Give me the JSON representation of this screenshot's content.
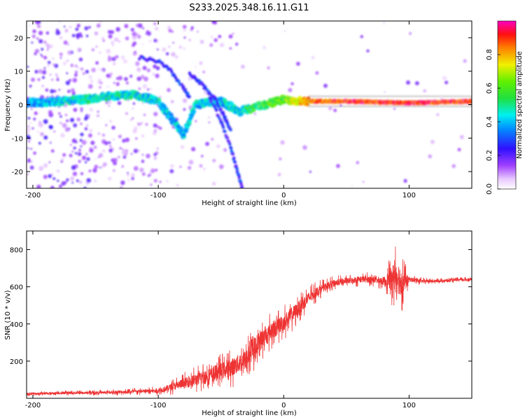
{
  "title": "S233.2025.348.16.11.G11",
  "chart_data": [
    {
      "type": "heatmap",
      "name": "spectrogram",
      "xlabel": "Height of straight line (km)",
      "ylabel": "Frequency (Hz)",
      "xlim": [
        -205,
        150
      ],
      "ylim": [
        -25,
        25
      ],
      "xticks": [
        -200,
        -100,
        0,
        100
      ],
      "yticks": [
        -20,
        -10,
        0,
        10,
        20
      ],
      "colorbar": {
        "label": "Normalized spectral amplitude",
        "range": [
          0,
          1
        ],
        "ticks": [
          0.0,
          0.2,
          0.4,
          0.6,
          0.8
        ]
      },
      "ridge": {
        "description_points": [
          {
            "x": -205,
            "f": 0.5,
            "amp": 0.35
          },
          {
            "x": -180,
            "f": 1.0,
            "amp": 0.4
          },
          {
            "x": -160,
            "f": 1.5,
            "amp": 0.45
          },
          {
            "x": -140,
            "f": 2.5,
            "amp": 0.45
          },
          {
            "x": -120,
            "f": 3.0,
            "amp": 0.45
          },
          {
            "x": -100,
            "f": 1.0,
            "amp": 0.4
          },
          {
            "x": -90,
            "f": -4.0,
            "amp": 0.4
          },
          {
            "x": -80,
            "f": -9.0,
            "amp": 0.4
          },
          {
            "x": -70,
            "f": 0.0,
            "amp": 0.4
          },
          {
            "x": -50,
            "f": 1.0,
            "amp": 0.4
          },
          {
            "x": -35,
            "f": -2.0,
            "amp": 0.45
          },
          {
            "x": -20,
            "f": -0.5,
            "amp": 0.55
          },
          {
            "x": 0,
            "f": 1.5,
            "amp": 0.6
          },
          {
            "x": 20,
            "f": 1.0,
            "amp": 0.85
          },
          {
            "x": 50,
            "f": 1.0,
            "amp": 0.9
          },
          {
            "x": 100,
            "f": 0.5,
            "amp": 0.9
          },
          {
            "x": 150,
            "f": 1.0,
            "amp": 0.9
          }
        ]
      }
    },
    {
      "type": "line",
      "name": "snr",
      "xlabel": "Height of straight line (km)",
      "ylabel": "SNR (10 * v/v)",
      "xlim": [
        -205,
        150
      ],
      "ylim": [
        0,
        900
      ],
      "xticks": [
        -200,
        -100,
        0,
        100
      ],
      "yticks": [
        200,
        400,
        600,
        800
      ],
      "color": "#ee3333",
      "envelope": {
        "x": [
          -205,
          -150,
          -100,
          -90,
          -80,
          -60,
          -40,
          -30,
          -20,
          -10,
          0,
          10,
          20,
          30,
          40,
          50,
          60,
          70,
          80,
          85,
          90,
          95,
          100,
          110,
          120,
          150
        ],
        "mean": [
          25,
          30,
          40,
          60,
          80,
          120,
          170,
          210,
          300,
          360,
          410,
          470,
          540,
          590,
          620,
          630,
          640,
          640,
          630,
          640,
          660,
          620,
          640,
          630,
          630,
          640
        ],
        "spread": [
          12,
          15,
          25,
          40,
          60,
          90,
          110,
          120,
          120,
          110,
          100,
          90,
          70,
          50,
          40,
          35,
          40,
          40,
          50,
          120,
          220,
          150,
          30,
          20,
          15,
          15
        ]
      }
    }
  ]
}
